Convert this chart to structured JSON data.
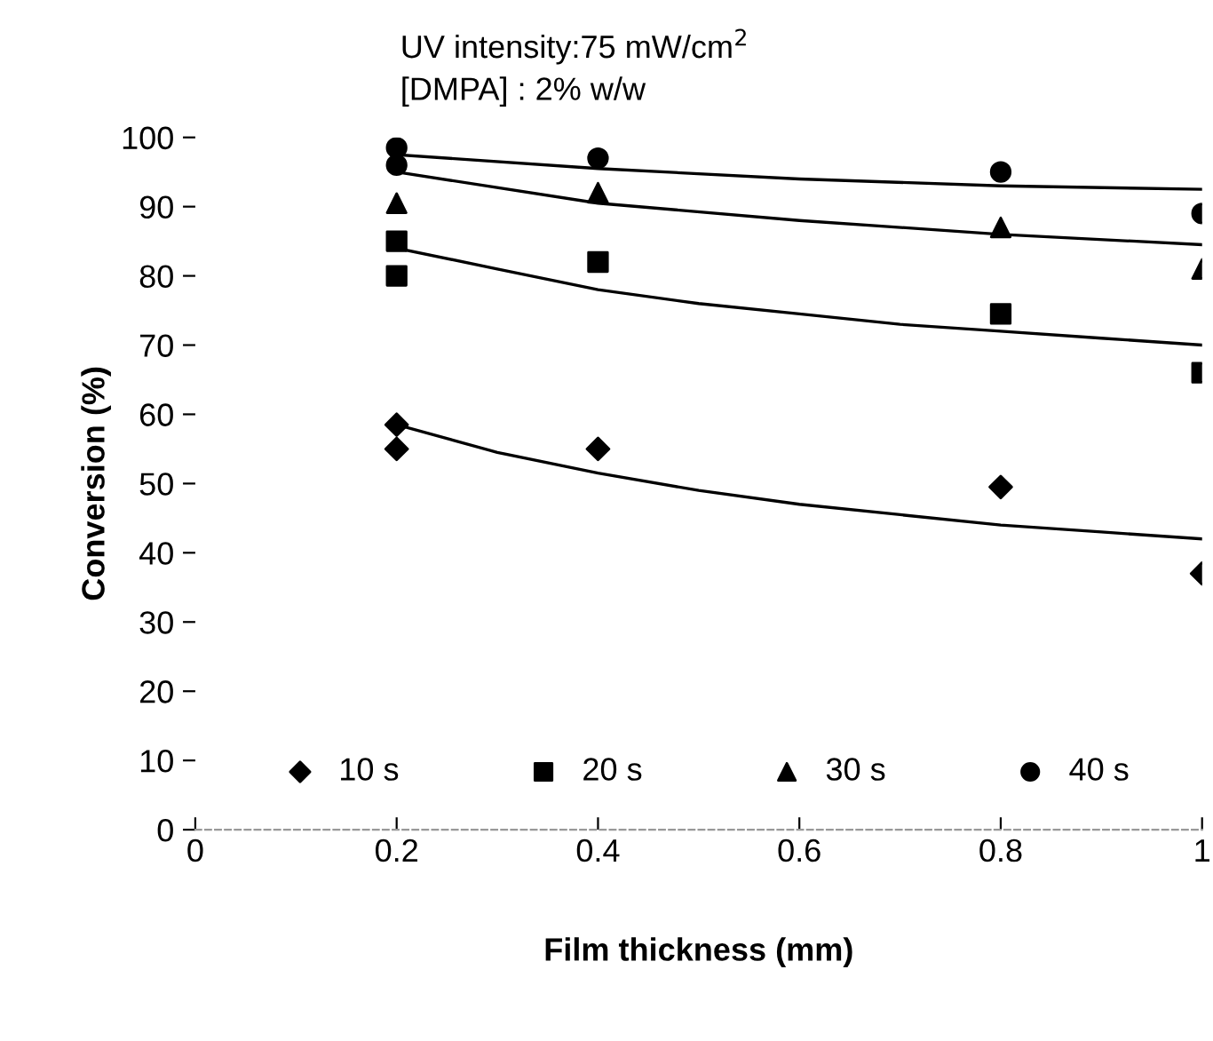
{
  "chart_data": {
    "type": "scatter",
    "xlabel": "Film thickness (mm)",
    "ylabel": "Conversion (%)",
    "annotations": [
      "UV intensity:75 mW/cm$^{2}$",
      "[DMPA] : 2% w/w"
    ],
    "xlim": [
      0,
      1
    ],
    "xticks": [
      0,
      0.2,
      0.4,
      0.6,
      0.8,
      1
    ],
    "ylim": [
      0,
      100
    ],
    "yticks": [
      0,
      10,
      20,
      30,
      40,
      50,
      60,
      70,
      80,
      90,
      100
    ],
    "legend": "bottom",
    "grid": false,
    "series": [
      {
        "name": "10 s",
        "color": "#000000",
        "marker": "diamond",
        "x": [
          0.2,
          0.2,
          0.4,
          0.8,
          1
        ],
        "values": [
          58.5,
          55,
          55,
          49.5,
          37
        ]
      },
      {
        "name": "20 s",
        "color": "#000000",
        "marker": "square",
        "x": [
          0.2,
          0.2,
          0.4,
          0.8,
          1
        ],
        "values": [
          85,
          80,
          82,
          74.5,
          66
        ]
      },
      {
        "name": "30 s",
        "color": "#000000",
        "marker": "triangle",
        "x": [
          0.2,
          0.4,
          0.8,
          1
        ],
        "values": [
          90.5,
          92,
          87,
          81
        ]
      },
      {
        "name": "40 s",
        "color": "#000000",
        "marker": "circle",
        "x": [
          0.2,
          0.2,
          0.4,
          0.8,
          1
        ],
        "values": [
          98.5,
          96,
          97,
          95,
          89
        ]
      },
      {
        "type": "line",
        "color": "#000000",
        "x": [
          0.2,
          0.3,
          0.4,
          0.5,
          0.6,
          0.7,
          0.8,
          0.9,
          1
        ],
        "values": [
          58.5,
          54.5,
          51.5,
          49,
          47,
          45.5,
          44,
          43,
          42
        ]
      },
      {
        "type": "line",
        "color": "#000000",
        "x": [
          0.2,
          0.3,
          0.4,
          0.5,
          0.6,
          0.7,
          0.8,
          0.9,
          1
        ],
        "values": [
          84,
          81,
          78,
          76,
          74.5,
          73,
          72,
          71,
          70
        ]
      },
      {
        "type": "line",
        "color": "#000000",
        "x": [
          0.2,
          0.4,
          0.6,
          0.8,
          1
        ],
        "values": [
          95,
          90.5,
          88,
          86,
          84.5
        ]
      },
      {
        "type": "line",
        "color": "#000000",
        "x": [
          0.2,
          0.4,
          0.6,
          0.8,
          1
        ],
        "values": [
          97.5,
          95.5,
          94,
          93,
          92.5
        ]
      }
    ]
  }
}
